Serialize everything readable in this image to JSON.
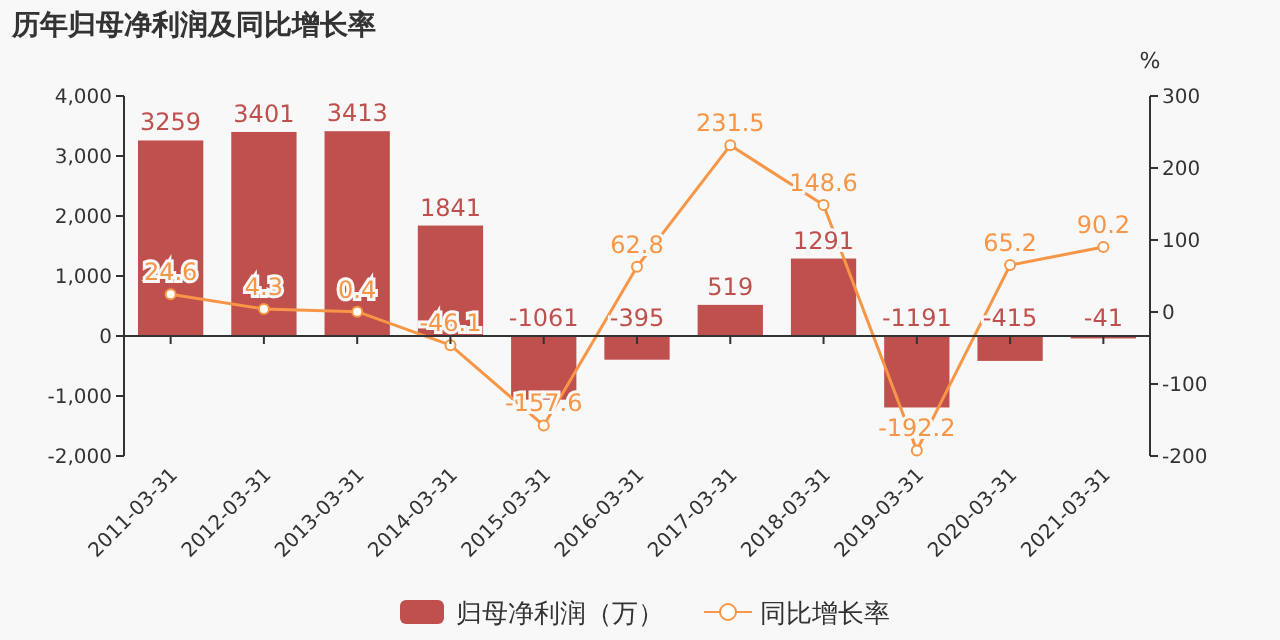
{
  "chart_data": {
    "type": "bar",
    "title": "历年归母净利润及同比增长率",
    "y2label": "%",
    "categories": [
      "2011-03-31",
      "2012-03-31",
      "2013-03-31",
      "2014-03-31",
      "2015-03-31",
      "2016-03-31",
      "2017-03-31",
      "2018-03-31",
      "2019-03-31",
      "2020-03-31",
      "2021-03-31"
    ],
    "series": [
      {
        "name": "归母净利润（万）",
        "type": "bar",
        "color": "#c0504d",
        "values": [
          3259,
          3401,
          3413,
          1841,
          -1061,
          -395,
          519,
          1291,
          -1191,
          -415,
          -41
        ]
      },
      {
        "name": "同比增长率",
        "type": "line",
        "axis": "y2",
        "color": "#f79646",
        "marker": "circle",
        "values": [
          24.6,
          4.3,
          0.4,
          -46.1,
          -157.6,
          62.8,
          231.5,
          148.6,
          -192.2,
          65.2,
          90.2
        ]
      }
    ],
    "ylim": [
      -2000,
      4000
    ],
    "yticks": [
      {
        "value": -2000,
        "label": "-2,000"
      },
      {
        "value": -1000,
        "label": "-1,000"
      },
      0,
      {
        "value": 1000,
        "label": "1,000"
      },
      {
        "value": 2000,
        "label": "2,000"
      },
      {
        "value": 3000,
        "label": "3,000"
      },
      {
        "value": 4000,
        "label": "4,000"
      }
    ],
    "y2lim": [
      -200,
      300
    ],
    "y2ticks": [
      -200,
      -100,
      0,
      100,
      200,
      300
    ],
    "data_labels": true,
    "legend": "bottom"
  }
}
